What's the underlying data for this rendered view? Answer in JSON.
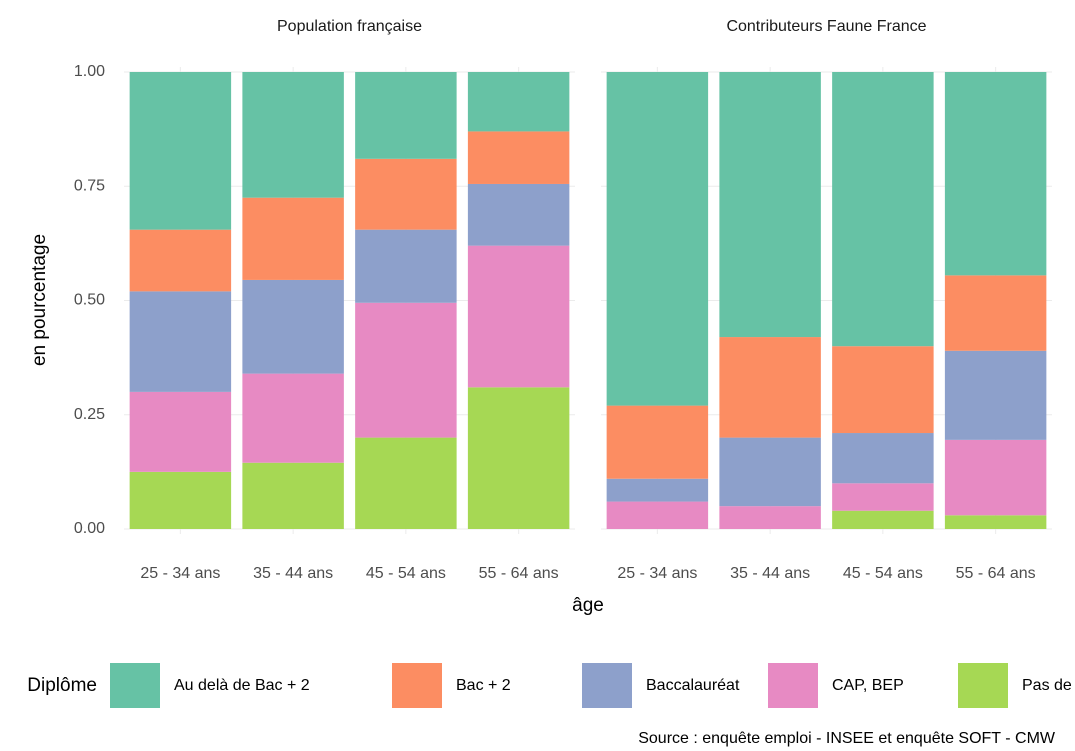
{
  "chart_data": {
    "type": "bar",
    "stacked": true,
    "y_label": "en pourcentage",
    "x_label": "âge",
    "legend_title": "Diplôme",
    "legend_position": "bottom",
    "caption": "Source : enquête emploi - INSEE et enquête SOFT - CMW",
    "grid": true,
    "ylim": [
      0,
      1
    ],
    "yticks": [
      {
        "value": 0,
        "label": "0.00"
      },
      {
        "value": 0.25,
        "label": "0.25"
      },
      {
        "value": 0.5,
        "label": "0.50"
      },
      {
        "value": 0.75,
        "label": "0.75"
      },
      {
        "value": 1,
        "label": "1.00"
      }
    ],
    "series": [
      {
        "name": "Au delà de Bac + 2",
        "color": "#66c2a5"
      },
      {
        "name": "Bac + 2",
        "color": "#fc8d62"
      },
      {
        "name": "Baccalauréat",
        "color": "#8da0cb"
      },
      {
        "name": "CAP, BEP",
        "color": "#e78ac3"
      },
      {
        "name": "Pas de diplôme",
        "color": "#a6d854"
      }
    ],
    "facets": [
      {
        "title": "Population française",
        "categories": [
          "25 - 34 ans",
          "35 - 44 ans",
          "45 - 54 ans",
          "55 - 64 ans"
        ],
        "values": [
          [
            0.345,
            0.275,
            0.19,
            0.13
          ],
          [
            0.135,
            0.18,
            0.155,
            0.115
          ],
          [
            0.22,
            0.205,
            0.16,
            0.135
          ],
          [
            0.175,
            0.195,
            0.295,
            0.31
          ],
          [
            0.125,
            0.145,
            0.2,
            0.31
          ]
        ]
      },
      {
        "title": "Contributeurs Faune France",
        "categories": [
          "25 - 34 ans",
          "35 - 44 ans",
          "45 - 54 ans",
          "55 - 64 ans"
        ],
        "values": [
          [
            0.73,
            0.58,
            0.6,
            0.445
          ],
          [
            0.16,
            0.22,
            0.19,
            0.165
          ],
          [
            0.05,
            0.15,
            0.11,
            0.195
          ],
          [
            0.06,
            0.05,
            0.06,
            0.165
          ],
          [
            0,
            0,
            0.04,
            0.03
          ]
        ]
      }
    ]
  }
}
